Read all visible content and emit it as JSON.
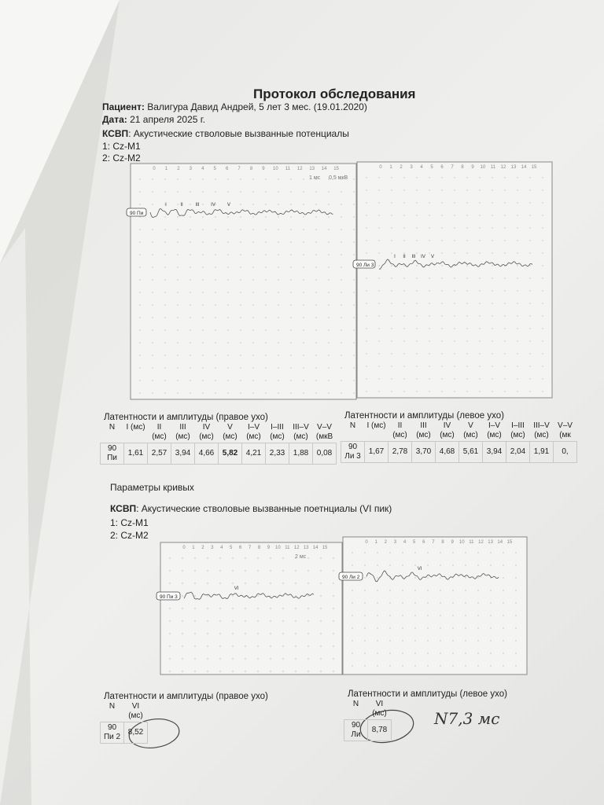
{
  "header": {
    "title": "Протокол обследования",
    "patient_label": "Пациент:",
    "patient": "Валигура Давид Андрей, 5 лет 3 мес. (19.01.2020)",
    "date_label": "Дата:",
    "date": "21 апреля 2025 г."
  },
  "section1": {
    "method": "КСВП",
    "description": ": Акустические стволовые вызванные потенциалы",
    "leads": [
      "1: Cz-M1",
      "2: Cz-M2"
    ],
    "panels": [
      {
        "ticks": [
          0,
          1,
          2,
          3,
          4,
          5,
          6,
          7,
          8,
          9,
          10,
          11,
          12,
          13,
          14,
          15
        ],
        "scale": [
          "1 мс",
          "0,5 мкВ"
        ],
        "trace": "90 Пи",
        "peaks": [
          "I",
          "II",
          "III",
          "IV",
          "V"
        ]
      },
      {
        "ticks": [
          0,
          1,
          2,
          3,
          4,
          5,
          6,
          7,
          8,
          9,
          10,
          11,
          12,
          13,
          14,
          15
        ],
        "trace": "90 Ли 3",
        "peaks": [
          "I",
          "II",
          "III",
          "IV",
          "V"
        ]
      }
    ],
    "tables": [
      {
        "title": "Латентности и амплитуды (правое ухо)",
        "headers": [
          "N",
          "I (мс)",
          "II (мс)",
          "III (мс)",
          "IV (мс)",
          "V (мс)",
          "I–V (мс)",
          "I–III (мс)",
          "III–V (мс)",
          "V–V (мкВ"
        ],
        "rows": [
          [
            "90 Пи",
            "1,61",
            "2,57",
            "3,94",
            "4,66",
            "5,82",
            "4,21",
            "2,33",
            "1,88",
            "0,08"
          ]
        ]
      },
      {
        "title": "Латентности и амплитуды (левое ухо)",
        "headers": [
          "N",
          "I (мс)",
          "II (мс)",
          "III (мс)",
          "IV (мс)",
          "V (мс)",
          "I–V (мс)",
          "I–III (мс)",
          "III–V (мс)",
          "V–V (мк"
        ],
        "rows": [
          [
            "90 Ли 3",
            "1,67",
            "2,78",
            "3,70",
            "4,68",
            "5,61",
            "3,94",
            "2,04",
            "1,91",
            "0,"
          ]
        ]
      }
    ]
  },
  "curve_params": "Параметры кривых",
  "section2": {
    "method": "КСВП",
    "description": ": Акустические стволовые вызванные поетнциалы (VI пик)",
    "leads": [
      "1: Cz-M1",
      "2: Cz-M2"
    ],
    "panels": [
      {
        "ticks": [
          0,
          1,
          2,
          3,
          4,
          5,
          6,
          7,
          8,
          9,
          10,
          11,
          12,
          13,
          14,
          15
        ],
        "scale": [
          "2 мс"
        ],
        "trace": "90 Пи 3",
        "peaks": [
          "VI"
        ]
      },
      {
        "ticks": [
          0,
          1,
          2,
          3,
          4,
          5,
          6,
          7,
          8,
          9,
          10,
          11,
          12,
          13,
          14,
          15
        ],
        "trace": "90 Ли 2",
        "peaks": [
          "VI"
        ]
      }
    ],
    "tables": [
      {
        "title": "Латентности и амплитуды (правое ухо)",
        "headers": [
          "N",
          "VI (мс)"
        ],
        "rows": [
          [
            "90 Пи 2",
            "8,52"
          ]
        ]
      },
      {
        "title": "Латентности и амплитуды (левое ухо)",
        "headers": [
          "N",
          "VI (мс)"
        ],
        "rows": [
          [
            "90 Ли",
            "8,78"
          ]
        ]
      }
    ]
  },
  "handwritten": "N7,3 мс"
}
